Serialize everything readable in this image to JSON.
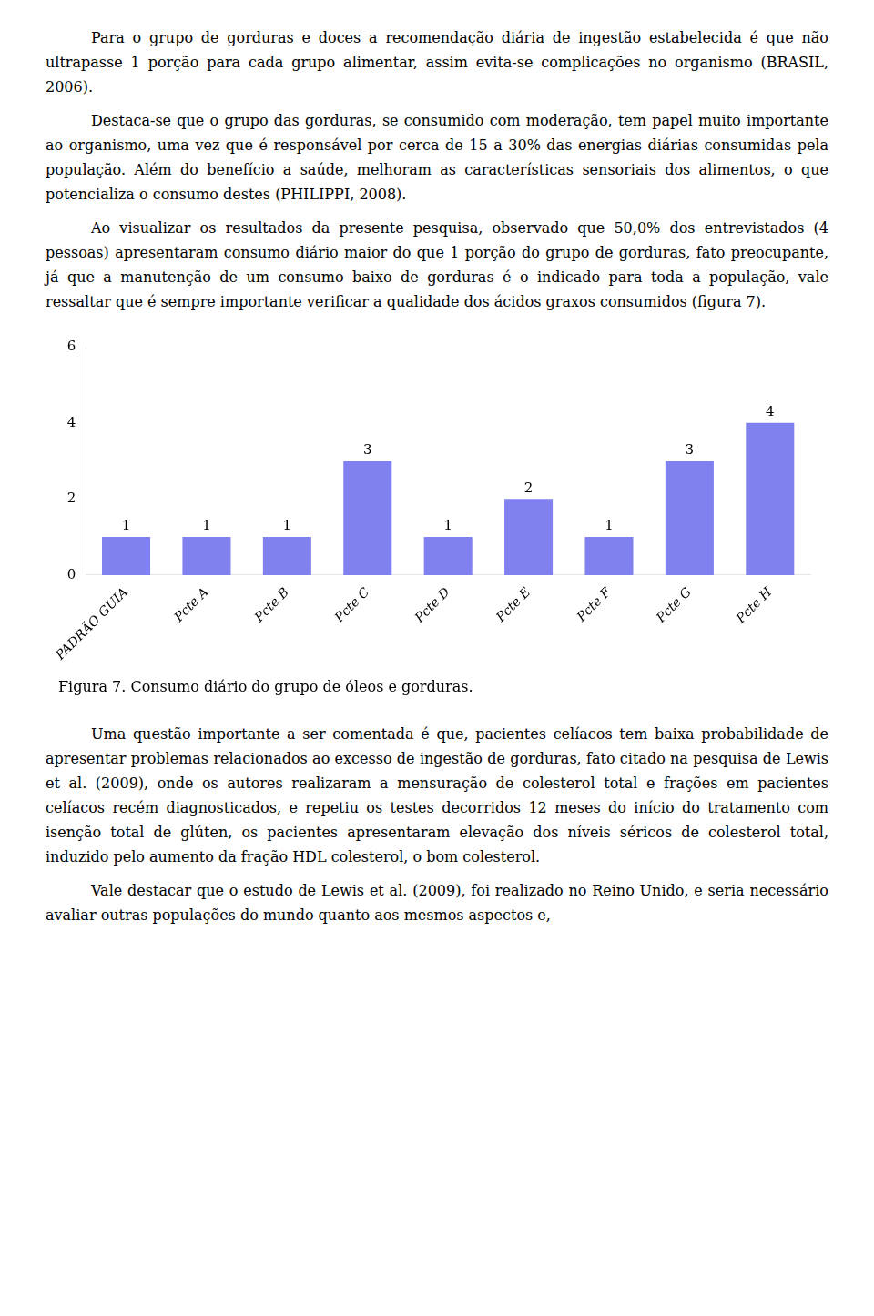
{
  "paragraphs_before": [
    "Para o grupo de gorduras e doces a recomendação diária de ingestão estabelecida é que não ultrapasse 1 porção para cada grupo alimentar, assim evita-se complicações no organismo (BRASIL, 2006).",
    "Destaca-se que o grupo das gorduras, se consumido com moderação, tem papel muito importante ao organismo, uma vez que é responsável por cerca de 15 a 30% das energias diárias consumidas pela população. Além do benefício a saúde, melhoram as características sensoriais dos alimentos, o que potencializa o consumo destes (PHILIPPI, 2008).",
    "Ao visualizar os resultados da presente pesquisa, observado que 50,0% dos entrevistados (4 pessoas) apresentaram consumo diário maior do que 1 porção do grupo de gorduras, fato preocupante, já que a manutenção de um consumo baixo de gorduras é o indicado para toda a população, vale ressaltar que é sempre importante verificar a qualidade dos ácidos graxos consumidos (figura 7)."
  ],
  "chart_data": {
    "type": "bar",
    "title": "Figura 7. Consumo diário do grupo de óleos e gorduras.",
    "categories": [
      "PADRÃO GUIA",
      "Pcte A",
      "Pcte B",
      "Pcte C",
      "Pcte D",
      "Pcte E",
      "Pcte F",
      "Pcte G",
      "Pcte H"
    ],
    "values": [
      1,
      1,
      1,
      3,
      1,
      2,
      1,
      3,
      4
    ],
    "color": "#8080EE",
    "ylim": [
      0,
      6
    ],
    "yticks": [
      0,
      2,
      4,
      6
    ],
    "grid": false,
    "data_labels": true
  },
  "paragraphs_after": [
    "Uma questão importante a ser comentada é que, pacientes celíacos tem baixa probabilidade de apresentar problemas relacionados ao excesso de ingestão de gorduras, fato citado na pesquisa de Lewis et al. (2009), onde os autores realizaram a mensuração de colesterol total e frações em pacientes celíacos recém diagnosticados, e repetiu os testes decorridos 12 meses do início do tratamento com isenção total de glúten, os pacientes apresentaram elevação dos níveis séricos de colesterol total, induzido pelo aumento da fração HDL colesterol, o bom colesterol.",
    "Vale destacar que o estudo de Lewis et al. (2009), foi realizado no Reino Unido, e seria necessário avaliar outras populações do mundo quanto aos mesmos aspectos e,"
  ]
}
